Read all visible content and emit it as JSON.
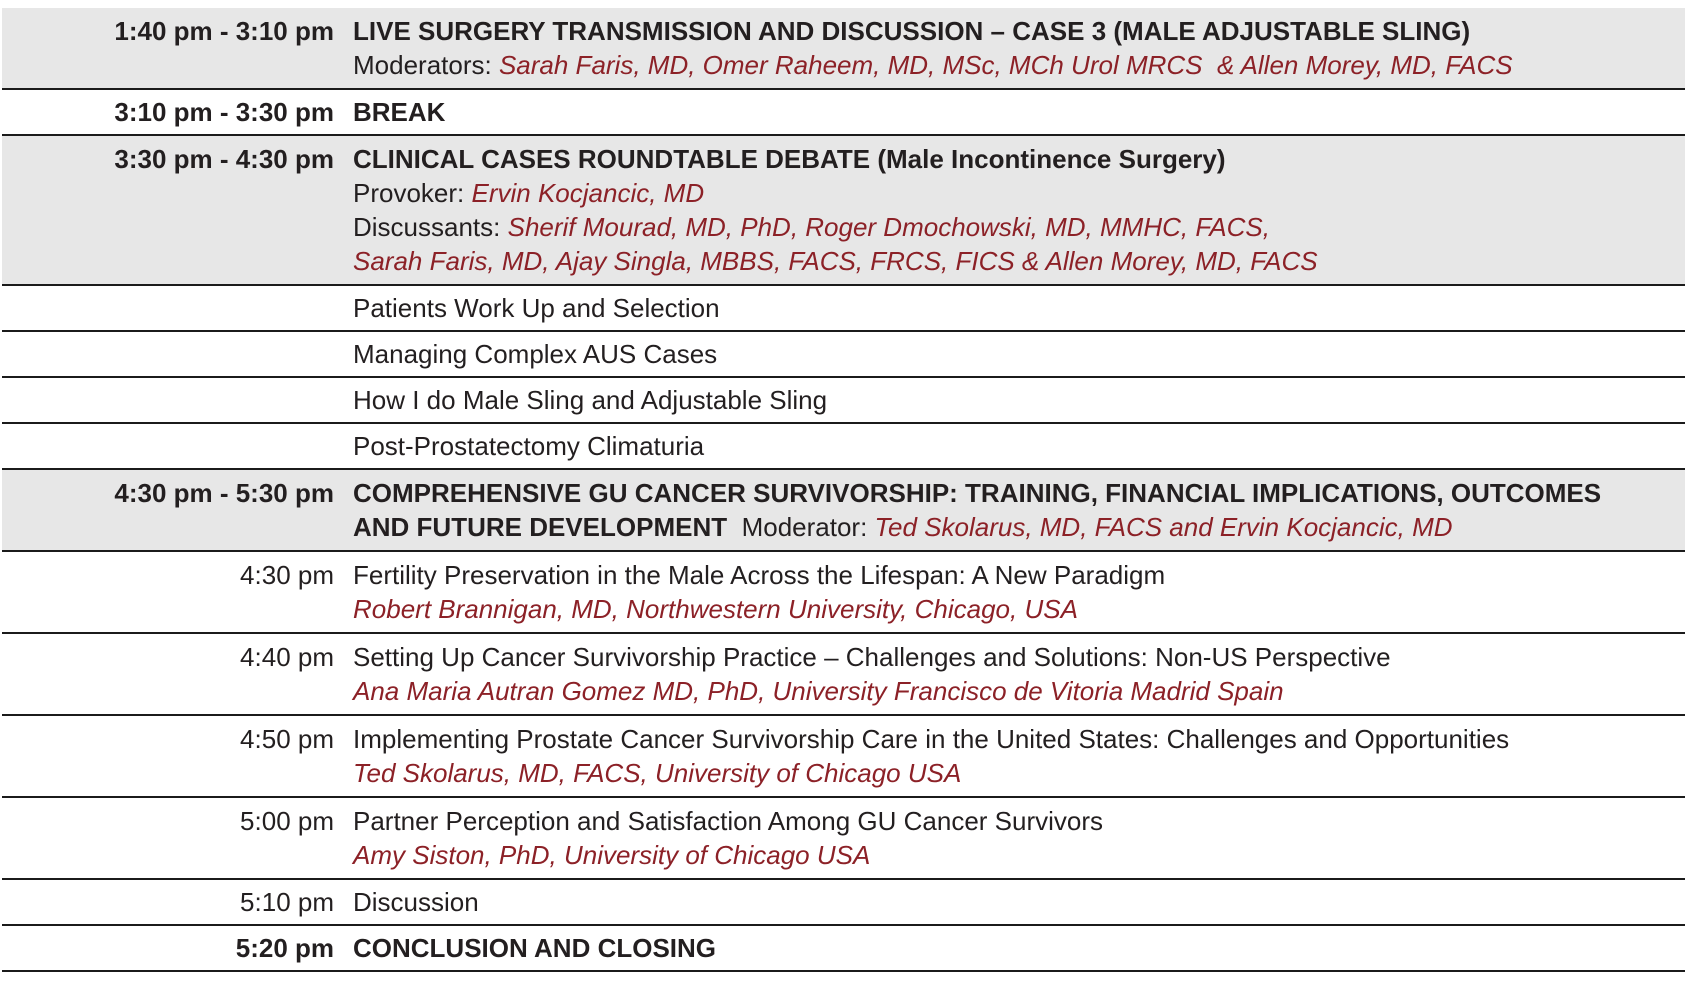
{
  "colors": {
    "accent_red": "#8c2127",
    "row_shade": "#e7e7e7",
    "separator": "#1b1b1b",
    "text_black": "#231f20"
  },
  "schedule": {
    "rows": [
      {
        "time": "1:40 pm - 3:10 pm",
        "title": "LIVE SURGERY TRANSMISSION AND DISCUSSION – CASE 3 (MALE ADJUSTABLE SLING)",
        "moderators_label": "Moderators: ",
        "moderators": "Sarah Faris, MD, Omer Raheem, MD, MSc, MCh Urol MRCS  & Allen Morey, MD, FACS"
      },
      {
        "time": "3:10 pm - 3:30 pm",
        "title": "BREAK"
      },
      {
        "time": "3:30 pm - 4:30 pm",
        "title": "CLINICAL CASES ROUNDTABLE DEBATE (Male Incontinence Surgery)",
        "provoker_label": "Provoker: ",
        "provoker": "Ervin Kocjancic, MD",
        "discussants_label": "Discussants: ",
        "discussants_line1": "Sherif Mourad, MD, PhD, Roger Dmochowski, MD, MMHC, FACS,",
        "discussants_line2": "Sarah Faris, MD, Ajay Singla, MBBS, FACS, FRCS, FICS & Allen Morey, MD, FACS"
      },
      {
        "title": "Patients Work Up and Selection"
      },
      {
        "title": "Managing Complex AUS Cases"
      },
      {
        "title": "How I do Male Sling and Adjustable Sling"
      },
      {
        "title": "Post-Prostatectomy Climaturia"
      },
      {
        "time": "4:30 pm - 5:30 pm",
        "title_line1": "COMPREHENSIVE GU CANCER SURVIVORSHIP: TRAINING, FINANCIAL IMPLICATIONS, OUTCOMES",
        "title_line2": "AND FUTURE DEVELOPMENT",
        "moderator_label": "  Moderator: ",
        "moderator": "Ted Skolarus, MD, FACS and Ervin Kocjancic, MD"
      },
      {
        "time": "4:30 pm",
        "title": "Fertility Preservation in the Male Across the Lifespan: A New Paradigm",
        "speaker": "Robert Brannigan, MD, Northwestern University, Chicago, USA"
      },
      {
        "time": "4:40 pm",
        "title": "Setting Up Cancer Survivorship Practice – Challenges and Solutions: Non-US Perspective",
        "speaker": "Ana Maria Autran Gomez MD, PhD, University Francisco de Vitoria Madrid Spain"
      },
      {
        "time": "4:50 pm",
        "title": "Implementing Prostate Cancer Survivorship Care in the United States: Challenges and Opportunities",
        "speaker": "Ted Skolarus, MD, FACS, University of Chicago USA"
      },
      {
        "time": "5:00 pm",
        "title": "Partner Perception and Satisfaction Among GU Cancer Survivors",
        "speaker": "Amy Siston, PhD, University of Chicago USA"
      },
      {
        "time": "5:10 pm",
        "title": "Discussion"
      },
      {
        "time": "5:20 pm",
        "title": "CONCLUSION AND CLOSING"
      }
    ]
  }
}
